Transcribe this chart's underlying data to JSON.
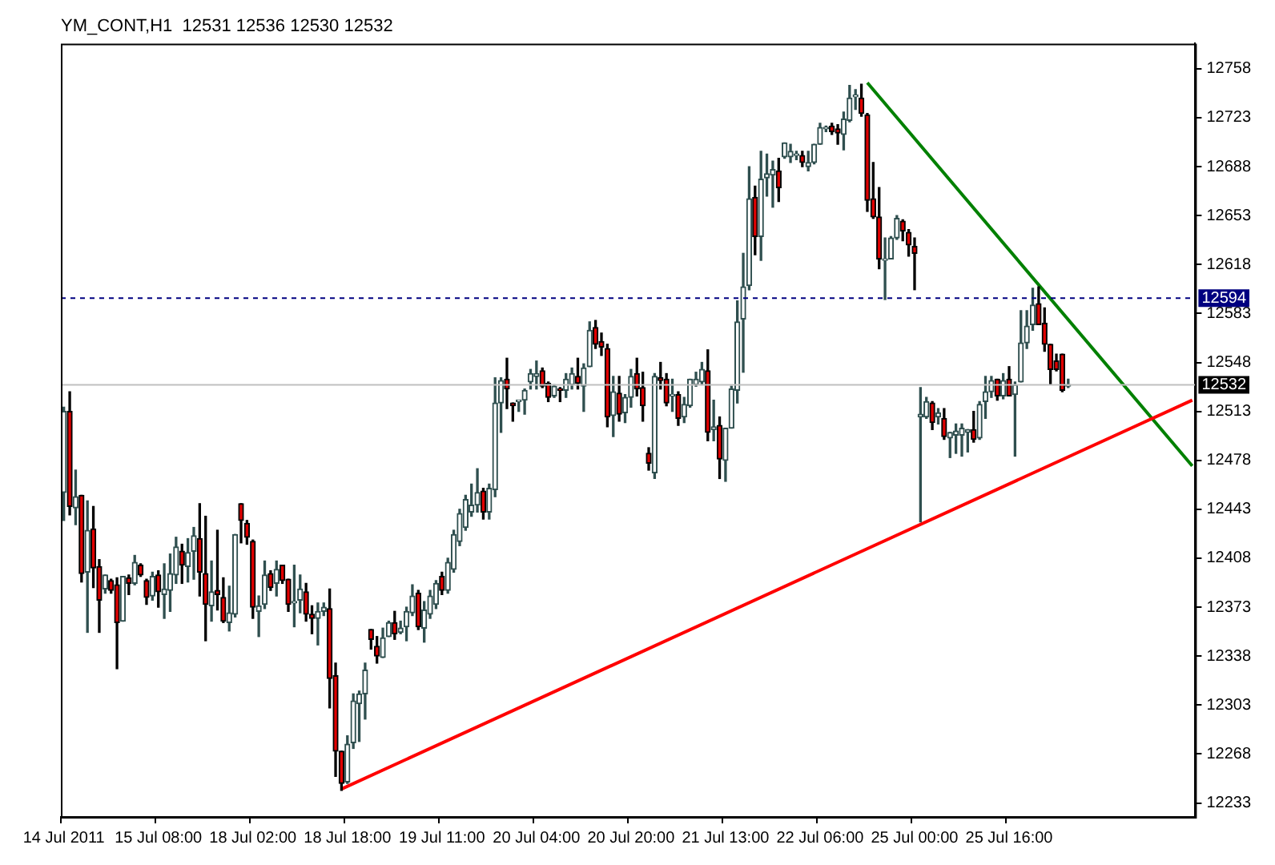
{
  "chart_data": {
    "type": "candlestick",
    "title": "YM_CONT,H1  12531 12536 12530 12532",
    "categories": [
      "14 Jul 2011",
      null,
      null,
      null,
      null,
      null,
      null,
      null,
      null,
      null,
      null,
      null,
      null,
      null,
      null,
      null,
      "15 Jul 08:00",
      null,
      null,
      null,
      null,
      null,
      null,
      null,
      null,
      null,
      null,
      null,
      null,
      null,
      null,
      null,
      "18 Jul 02:00",
      null,
      null,
      null,
      null,
      null,
      null,
      null,
      null,
      null,
      null,
      null,
      null,
      null,
      null,
      null,
      "18 Jul 18:00",
      null,
      null,
      null,
      null,
      null,
      null,
      null,
      null,
      null,
      null,
      null,
      null,
      null,
      null,
      null,
      "19 Jul 11:00",
      null,
      null,
      null,
      null,
      null,
      null,
      null,
      null,
      null,
      null,
      null,
      null,
      null,
      null,
      null,
      "20 Jul 04:00",
      null,
      null,
      null,
      null,
      null,
      null,
      null,
      null,
      null,
      null,
      null,
      null,
      null,
      null,
      null,
      "20 Jul 20:00",
      null,
      null,
      null,
      null,
      null,
      null,
      null,
      null,
      null,
      null,
      null,
      null,
      null,
      null,
      null,
      "21 Jul 13:00",
      null,
      null,
      null,
      null,
      null,
      null,
      null,
      null,
      null,
      null,
      null,
      null,
      null,
      null,
      null,
      "22 Jul 06:00",
      null,
      null,
      null,
      null,
      null,
      null,
      null,
      null,
      null,
      null,
      null,
      null,
      null,
      null,
      null,
      "25 Jul 00:00",
      null,
      null,
      null,
      null,
      null,
      null,
      null,
      null,
      null,
      null,
      null,
      null,
      null,
      null,
      null,
      "25 Jul 16:00",
      null,
      null,
      null,
      null,
      null,
      null,
      null,
      null,
      null,
      null,
      null,
      null,
      null,
      null,
      null,
      null,
      null,
      null,
      null,
      null,
      null,
      null,
      null,
      null,
      null,
      null,
      null,
      null,
      null,
      null,
      null
    ],
    "ohlc": [
      [
        12455,
        12516,
        12435,
        12513
      ],
      [
        12513,
        12527,
        12439,
        12445
      ],
      [
        12444,
        12471,
        12432,
        12452
      ],
      [
        12453,
        12453,
        12391,
        12397
      ],
      [
        12398,
        12449,
        12355,
        12428
      ],
      [
        12429,
        12445,
        12387,
        12401
      ],
      [
        12402,
        12407,
        12355,
        12378
      ],
      [
        12386,
        12396,
        12383,
        12396
      ],
      [
        12392,
        12393,
        12383,
        12385
      ],
      [
        12389,
        12394,
        12329,
        12362
      ],
      [
        12363,
        12395,
        12363,
        12395
      ],
      [
        12394,
        12396,
        12382,
        12390
      ],
      [
        12390,
        12410,
        12389,
        12405
      ],
      [
        12403,
        12404,
        12395,
        12396
      ],
      [
        12392,
        12393,
        12375,
        12380
      ],
      [
        12381,
        12398,
        12378,
        12395
      ],
      [
        12396,
        12399,
        12373,
        12384
      ],
      [
        12382,
        12404,
        12365,
        12386
      ],
      [
        12385,
        12411,
        12370,
        12397
      ],
      [
        12396,
        12423,
        12390,
        12416
      ],
      [
        12413,
        12418,
        12390,
        12403
      ],
      [
        12402,
        12422,
        12391,
        12412
      ],
      [
        12413,
        12430,
        12393,
        12424
      ],
      [
        12422,
        12447,
        12381,
        12398
      ],
      [
        12397,
        12438,
        12349,
        12375
      ],
      [
        12374,
        12406,
        12363,
        12384
      ],
      [
        12385,
        12428,
        12371,
        12382
      ],
      [
        12380,
        12394,
        12362,
        12363
      ],
      [
        12362,
        12388,
        12356,
        12369
      ],
      [
        12368,
        12425,
        12366,
        12425
      ],
      [
        12447,
        12447,
        12419,
        12435
      ],
      [
        12433,
        12435,
        12418,
        12423
      ],
      [
        12420,
        12421,
        12365,
        12373
      ],
      [
        12370,
        12381,
        12352,
        12374
      ],
      [
        12375,
        12406,
        12372,
        12396
      ],
      [
        12397,
        12399,
        12385,
        12387
      ],
      [
        12390,
        12406,
        12381,
        12400
      ],
      [
        12403,
        12403,
        12390,
        12392
      ],
      [
        12393,
        12393,
        12370,
        12375
      ],
      [
        12376,
        12403,
        12359,
        12377
      ],
      [
        12378,
        12396,
        12369,
        12386
      ],
      [
        12384,
        12390,
        12363,
        12368
      ],
      [
        12368,
        12374,
        12354,
        12365
      ],
      [
        12365,
        12376,
        12346,
        12370
      ],
      [
        12370,
        12376,
        12367,
        12373
      ],
      [
        12372,
        12386,
        12301,
        12322
      ],
      [
        12324,
        12333,
        12252,
        12270
      ],
      [
        12270,
        12270,
        12242,
        12247
      ],
      [
        12248,
        12281,
        12247,
        12275
      ],
      [
        12276,
        12311,
        12272,
        12306
      ],
      [
        12304,
        12313,
        12277,
        12311
      ],
      [
        12311,
        12333,
        12293,
        12328
      ],
      [
        12357,
        12357,
        12343,
        12350
      ],
      [
        12345,
        12352,
        12333,
        12338
      ],
      [
        12337,
        12358,
        12337,
        12351
      ],
      [
        12352,
        12363,
        12352,
        12362
      ],
      [
        12362,
        12370,
        12350,
        12354
      ],
      [
        12355,
        12363,
        12354,
        12358
      ],
      [
        12359,
        12373,
        12349,
        12370
      ],
      [
        12369,
        12389,
        12367,
        12381
      ],
      [
        12383,
        12385,
        12357,
        12359
      ],
      [
        12358,
        12377,
        12348,
        12371
      ],
      [
        12368,
        12385,
        12365,
        12381
      ],
      [
        12375,
        12392,
        12372,
        12390
      ],
      [
        12395,
        12398,
        12382,
        12385
      ],
      [
        12385,
        12408,
        12383,
        12405
      ],
      [
        12400,
        12428,
        12398,
        12425
      ],
      [
        12420,
        12443,
        12417,
        12440
      ],
      [
        12430,
        12453,
        12428,
        12450
      ],
      [
        12441,
        12461,
        12438,
        12446
      ],
      [
        12446,
        12472,
        12441,
        12455
      ],
      [
        12456,
        12458,
        12436,
        12441
      ],
      [
        12441,
        12461,
        12436,
        12458
      ],
      [
        12457,
        12537,
        12452,
        12519
      ],
      [
        12519,
        12537,
        12498,
        12535
      ],
      [
        12536,
        12551,
        12515,
        12529
      ],
      [
        12519,
        12519,
        12506,
        12517
      ],
      [
        12520,
        12520,
        12513,
        12520
      ],
      [
        12521,
        12529,
        12511,
        12528
      ],
      [
        12534,
        12543,
        12529,
        12540
      ],
      [
        12538,
        12549,
        12529,
        12540
      ],
      [
        12542,
        12544,
        12530,
        12531
      ],
      [
        12533,
        12534,
        12520,
        12523
      ],
      [
        12524,
        12532,
        12523,
        12531
      ],
      [
        12529,
        12530,
        12520,
        12528
      ],
      [
        12528,
        12540,
        12523,
        12536
      ],
      [
        12532,
        12544,
        12529,
        12540
      ],
      [
        12538,
        12551,
        12529,
        12533
      ],
      [
        12531,
        12547,
        12513,
        12544
      ],
      [
        12545,
        12577,
        12545,
        12571
      ],
      [
        12573,
        12578,
        12558,
        12561
      ],
      [
        12563,
        12569,
        12553,
        12559
      ],
      [
        12558,
        12561,
        12502,
        12509
      ],
      [
        12510,
        12538,
        12495,
        12527
      ],
      [
        12526,
        12538,
        12506,
        12511
      ],
      [
        12512,
        12525,
        12505,
        12523
      ],
      [
        12523,
        12543,
        12516,
        12538
      ],
      [
        12540,
        12551,
        12524,
        12529
      ],
      [
        12530,
        12541,
        12506,
        12517
      ],
      [
        12483,
        12487,
        12471,
        12476
      ],
      [
        12469,
        12540,
        12465,
        12538
      ],
      [
        12537,
        12548,
        12529,
        12535
      ],
      [
        12536,
        12540,
        12517,
        12519
      ],
      [
        12524,
        12536,
        12513,
        12524
      ],
      [
        12525,
        12527,
        12503,
        12508
      ],
      [
        12509,
        12523,
        12505,
        12518
      ],
      [
        12517,
        12536,
        12516,
        12536
      ],
      [
        12532,
        12541,
        12531,
        12536
      ],
      [
        12534,
        12548,
        12532,
        12543
      ],
      [
        12542,
        12557,
        12492,
        12498
      ],
      [
        12500,
        12521,
        12492,
        12502
      ],
      [
        12503,
        12509,
        12465,
        12479
      ],
      [
        12478,
        12501,
        12463,
        12501
      ],
      [
        12501,
        12531,
        12501,
        12529
      ],
      [
        12528,
        12592,
        12519,
        12577
      ],
      [
        12579,
        12626,
        12541,
        12602
      ],
      [
        12603,
        12688,
        12600,
        12665
      ],
      [
        12666,
        12674,
        12625,
        12638
      ],
      [
        12638,
        12699,
        12621,
        12679
      ],
      [
        12680,
        12697,
        12667,
        12683
      ],
      [
        12682,
        12692,
        12659,
        12686
      ],
      [
        12685,
        12694,
        12663,
        12673
      ],
      [
        12695,
        12705,
        12694,
        12705
      ],
      [
        12695,
        12704,
        12691,
        12699
      ],
      [
        12696,
        12699,
        12693,
        12696
      ],
      [
        12696,
        12699,
        12688,
        12691
      ],
      [
        12688,
        12699,
        12685,
        12691
      ],
      [
        12691,
        12704,
        12690,
        12704
      ],
      [
        12704,
        12719,
        12704,
        12716
      ],
      [
        12715,
        12717,
        12713,
        12715
      ],
      [
        12717,
        12719,
        12711,
        12713
      ],
      [
        12715,
        12718,
        12704,
        12712
      ],
      [
        12711,
        12727,
        12700,
        12722
      ],
      [
        12721,
        12746,
        12720,
        12737
      ],
      [
        12738,
        12743,
        12729,
        12738
      ],
      [
        12737,
        12747,
        12724,
        12726
      ],
      [
        12725,
        12726,
        12656,
        12664
      ],
      [
        12665,
        12691,
        12651,
        12652
      ],
      [
        12652,
        12673,
        12615,
        12622
      ],
      [
        12621,
        12637,
        12593,
        12621
      ],
      [
        12622,
        12638,
        12622,
        12637
      ],
      [
        12637,
        12653,
        12636,
        12651
      ],
      [
        12649,
        12650,
        12635,
        12642
      ],
      [
        12641,
        12643,
        12624,
        12632
      ],
      [
        12631,
        12637,
        12600,
        12626
      ],
      [
        12509,
        12530,
        12434,
        12511
      ],
      [
        12509,
        12523,
        12508,
        12520
      ],
      [
        12519,
        12520,
        12500,
        12505
      ],
      [
        12509,
        12515,
        12504,
        12512
      ],
      [
        12508,
        12515,
        12493,
        12495
      ],
      [
        12494,
        12498,
        12480,
        12498
      ],
      [
        12496,
        12504,
        12483,
        12499
      ],
      [
        12496,
        12504,
        12481,
        12501
      ],
      [
        12498,
        12500,
        12484,
        12500
      ],
      [
        12500,
        12513,
        12491,
        12493
      ],
      [
        12494,
        12520,
        12493,
        12518
      ],
      [
        12520,
        12538,
        12508,
        12527
      ],
      [
        12527,
        12538,
        12523,
        12535
      ],
      [
        12536,
        12536,
        12521,
        12524
      ],
      [
        12524,
        12540,
        12522,
        12535
      ],
      [
        12536,
        12545,
        12524,
        12524
      ],
      [
        12525,
        12534,
        12481,
        12532
      ],
      [
        12534,
        12585,
        12534,
        12562
      ],
      [
        12562,
        12585,
        12558,
        12574
      ],
      [
        12575,
        12601,
        12571,
        12589
      ],
      [
        12590,
        12602,
        12575,
        12575
      ],
      [
        12576,
        12587,
        12556,
        12561
      ],
      [
        12561,
        12561,
        12532,
        12543
      ],
      [
        12549,
        12554,
        12542,
        12543
      ],
      [
        12554,
        12554,
        12527,
        12528
      ],
      [
        12531,
        12536,
        12530,
        12532
      ],
      null,
      null,
      null,
      null,
      null,
      null,
      null,
      null,
      null,
      null,
      null,
      null,
      null,
      null,
      null,
      null,
      null,
      null,
      null,
      null,
      null
    ],
    "series": [
      {
        "type": "line",
        "color": "#ff0000",
        "values": [
          null,
          null,
          null,
          null,
          null,
          null,
          null,
          null,
          null,
          null,
          null,
          null,
          null,
          null,
          null,
          null,
          null,
          null,
          null,
          null,
          null,
          null,
          null,
          null,
          null,
          null,
          null,
          null,
          null,
          null,
          null,
          null,
          null,
          null,
          null,
          null,
          null,
          null,
          null,
          null,
          null,
          null,
          null,
          null,
          null,
          null,
          null,
          12243,
          null,
          null,
          null,
          null,
          null,
          null,
          null,
          null,
          null,
          null,
          null,
          null,
          null,
          null,
          null,
          null,
          null,
          null,
          null,
          null,
          null,
          null,
          null,
          null,
          null,
          null,
          null,
          null,
          null,
          null,
          null,
          null,
          null,
          null,
          null,
          null,
          null,
          null,
          null,
          null,
          null,
          null,
          null,
          null,
          null,
          null,
          null,
          null,
          null,
          null,
          null,
          null,
          null,
          null,
          null,
          null,
          null,
          null,
          null,
          null,
          null,
          null,
          null,
          null,
          null,
          null,
          null,
          null,
          null,
          null,
          null,
          null,
          null,
          null,
          null,
          null,
          null,
          null,
          null,
          null,
          null,
          null,
          null,
          null,
          null,
          null,
          null,
          null,
          null,
          null,
          null,
          null,
          null,
          null,
          null,
          null,
          null,
          null,
          null,
          null,
          null,
          null,
          null,
          null,
          null,
          null,
          null,
          null,
          null,
          null,
          null,
          null,
          null,
          null,
          null,
          null,
          null,
          null,
          null,
          null,
          null,
          null,
          null,
          null,
          null,
          null,
          null,
          null,
          null,
          null,
          null,
          null,
          null,
          null,
          null,
          null,
          null,
          null,
          null,
          null,
          null,
          null,
          null,
          12521
        ]
      },
      {
        "type": "line",
        "color": "#008000",
        "values": [
          null,
          null,
          null,
          null,
          null,
          null,
          null,
          null,
          null,
          null,
          null,
          null,
          null,
          null,
          null,
          null,
          null,
          null,
          null,
          null,
          null,
          null,
          null,
          null,
          null,
          null,
          null,
          null,
          null,
          null,
          null,
          null,
          null,
          null,
          null,
          null,
          null,
          null,
          null,
          null,
          null,
          null,
          null,
          null,
          null,
          null,
          null,
          null,
          null,
          null,
          null,
          null,
          null,
          null,
          null,
          null,
          null,
          null,
          null,
          null,
          null,
          null,
          null,
          null,
          null,
          null,
          null,
          null,
          null,
          null,
          null,
          null,
          null,
          null,
          null,
          null,
          null,
          null,
          null,
          null,
          null,
          null,
          null,
          null,
          null,
          null,
          null,
          null,
          null,
          null,
          null,
          null,
          null,
          null,
          null,
          null,
          null,
          null,
          null,
          null,
          null,
          null,
          null,
          null,
          null,
          null,
          null,
          null,
          null,
          null,
          null,
          null,
          null,
          null,
          null,
          null,
          null,
          null,
          null,
          null,
          null,
          null,
          null,
          null,
          null,
          null,
          null,
          null,
          null,
          null,
          null,
          null,
          null,
          null,
          null,
          null,
          12748,
          null,
          null,
          null,
          null,
          null,
          null,
          null,
          null,
          null,
          null,
          null,
          null,
          null,
          null,
          null,
          null,
          null,
          null,
          null,
          null,
          null,
          null,
          null,
          null,
          null,
          null,
          null,
          null,
          null,
          null,
          null,
          null,
          null,
          null,
          null,
          null,
          null,
          null,
          null,
          null,
          null,
          null,
          null,
          null,
          null,
          null,
          null,
          null,
          null,
          null,
          null,
          null,
          null,
          null,
          12474
        ]
      }
    ],
    "ylim": [
      12223,
      12776
    ],
    "yticks": [
      12233,
      12268,
      12303,
      12338,
      12373,
      12408,
      12443,
      12478,
      12513,
      12548,
      12583,
      12618,
      12653,
      12688,
      12723,
      12758
    ],
    "ref_lines": [
      {
        "axis": "y",
        "value": 12594,
        "label": "12594",
        "color": "#000080",
        "line_style": "dashed"
      },
      {
        "axis": "y",
        "value": 12532,
        "label": "12532",
        "color": "#c0c0c0",
        "line_style": "solid"
      }
    ],
    "grid": false,
    "legend": false
  }
}
